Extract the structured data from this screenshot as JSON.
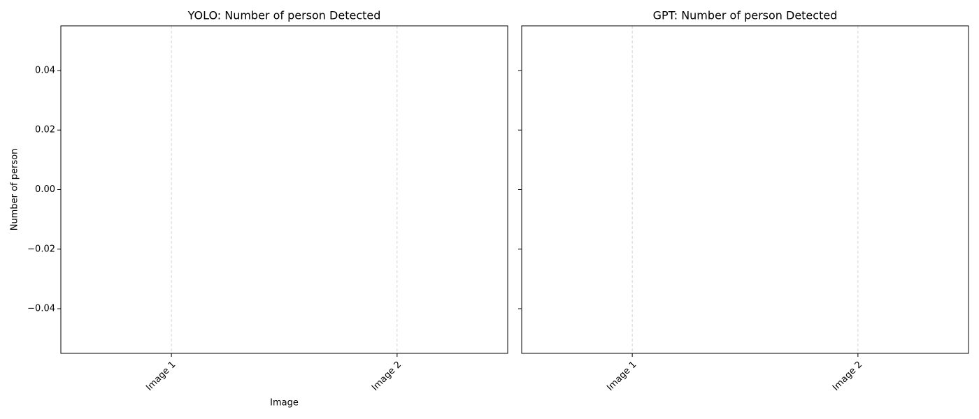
{
  "chart_data": [
    {
      "type": "bar",
      "title": "YOLO: Number of person Detected",
      "x_label": "Image",
      "y_label": "Number of person",
      "categories": [
        "Image 1",
        "Image 2"
      ],
      "values": [
        0,
        0
      ],
      "color": "#1f77b4",
      "ylim": [
        -0.055,
        0.055
      ],
      "yticks": [
        {
          "value": -0.04,
          "label": "−0.04"
        },
        {
          "value": -0.02,
          "label": "−0.02"
        },
        {
          "value": 0,
          "label": "0.00"
        },
        0.02,
        0.04
      ],
      "grid": "x"
    },
    {
      "type": "bar",
      "title": "GPT: Number of person Detected",
      "categories": [
        "Image 1",
        "Image 2"
      ],
      "values": [
        0,
        0
      ],
      "color": "#1f77b4",
      "ylim": [
        -0.055,
        0.055
      ],
      "sharey": true,
      "grid": "x"
    }
  ]
}
